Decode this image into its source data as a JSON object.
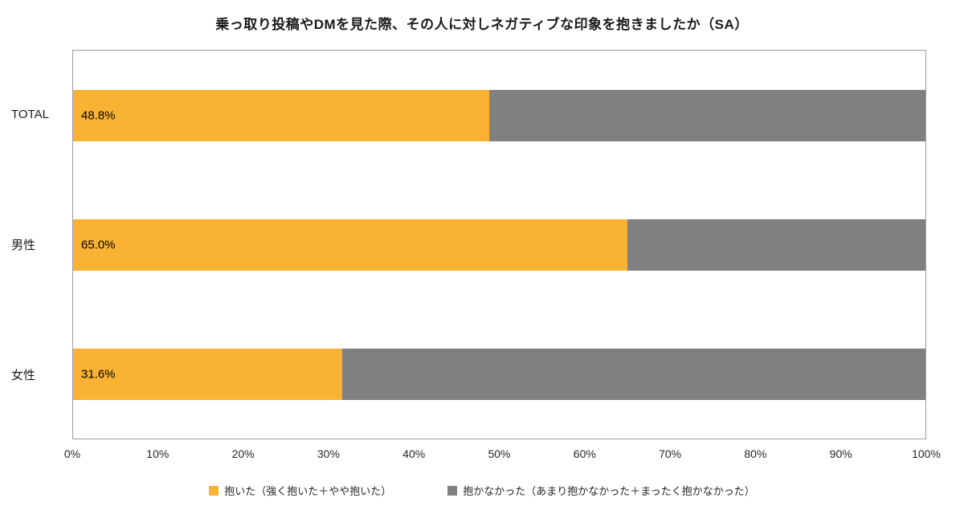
{
  "title": "乗っ取り投稿やDMを見た際、その人に対しネガティブな印象を抱きましたか（SA）",
  "chart_data": {
    "type": "bar",
    "orientation": "horizontal",
    "stacked": true,
    "title": "乗っ取り投稿やDMを見た際、その人に対しネガティブな印象を抱きましたか（SA）",
    "categories": [
      "TOTAL",
      "男性",
      "女性"
    ],
    "series": [
      {
        "name": "抱いた（強く抱いた＋やや抱いた）",
        "color": "#F9B234",
        "values": [
          48.8,
          65.0,
          31.6
        ]
      },
      {
        "name": "抱かなかった（あまり抱かなかった＋まったく抱かなかった）",
        "color": "#808080",
        "values": [
          51.2,
          35.0,
          68.4
        ]
      }
    ],
    "value_labels": [
      "48.8%",
      "65.0%",
      "31.6%"
    ],
    "x_ticks": [
      "0%",
      "10%",
      "20%",
      "30%",
      "40%",
      "50%",
      "60%",
      "70%",
      "80%",
      "90%",
      "100%"
    ],
    "xlim": [
      0,
      100
    ],
    "grid": false,
    "legend_position": "bottom"
  }
}
